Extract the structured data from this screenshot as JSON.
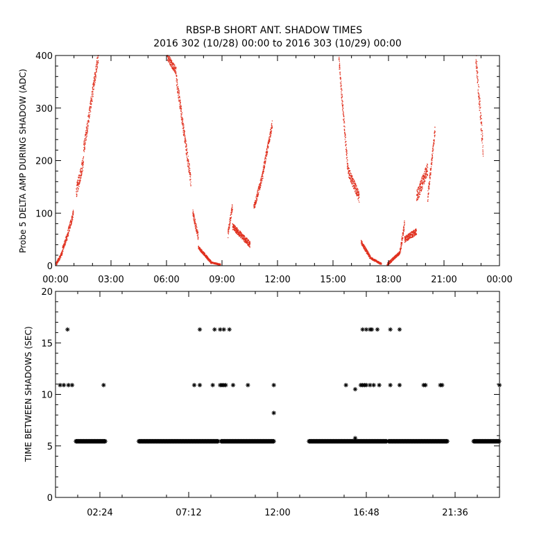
{
  "title_line1": "RBSP-B SHORT ANT. SHADOW TIMES",
  "title_line2": "2016 302 (10/28) 00:00 to 2016 303 (10/29) 00:00",
  "chart_data": [
    {
      "type": "scatter",
      "ylabel": "Probe 5 DELTA AMP DURING SHADOW (ADC)",
      "xlim": [
        0,
        24
      ],
      "ylim": [
        0,
        400
      ],
      "xticks": [
        "00:00",
        "03:00",
        "06:00",
        "09:00",
        "12:00",
        "15:00",
        "18:00",
        "21:00",
        "00:00"
      ],
      "yticks": [
        "0",
        "100",
        "200",
        "300",
        "400"
      ],
      "color": "#e0301e",
      "segments": [
        {
          "t0": 0.0,
          "t1": 0.35,
          "y0": 2,
          "y1": 25,
          "spread": 8
        },
        {
          "t0": 0.35,
          "t1": 0.6,
          "y0": 30,
          "y1": 55,
          "spread": 12
        },
        {
          "t0": 0.6,
          "t1": 0.95,
          "y0": 55,
          "y1": 100,
          "spread": 15
        },
        {
          "t0": 1.1,
          "t1": 1.5,
          "y0": 140,
          "y1": 200,
          "spread": 25
        },
        {
          "t0": 1.5,
          "t1": 2.3,
          "y0": 220,
          "y1": 400,
          "spread": 25
        },
        {
          "t0": 6.0,
          "t1": 6.5,
          "y0": 400,
          "y1": 370,
          "spread": 15
        },
        {
          "t0": 6.5,
          "t1": 7.3,
          "y0": 360,
          "y1": 160,
          "spread": 25
        },
        {
          "t0": 7.4,
          "t1": 7.7,
          "y0": 100,
          "y1": 55,
          "spread": 15
        },
        {
          "t0": 7.7,
          "t1": 8.4,
          "y0": 35,
          "y1": 6,
          "spread": 6
        },
        {
          "t0": 8.4,
          "t1": 8.9,
          "y0": 6,
          "y1": 2,
          "spread": 3
        },
        {
          "t0": 9.3,
          "t1": 9.55,
          "y0": 60,
          "y1": 115,
          "spread": 15
        },
        {
          "t0": 9.55,
          "t1": 10.5,
          "y0": 75,
          "y1": 40,
          "spread": 12
        },
        {
          "t0": 10.7,
          "t1": 11.2,
          "y0": 110,
          "y1": 175,
          "spread": 15
        },
        {
          "t0": 11.2,
          "t1": 11.7,
          "y0": 180,
          "y1": 270,
          "spread": 15
        },
        {
          "t0": 15.3,
          "t1": 15.8,
          "y0": 390,
          "y1": 175,
          "spread": 25
        },
        {
          "t0": 15.8,
          "t1": 16.4,
          "y0": 180,
          "y1": 130,
          "spread": 20
        },
        {
          "t0": 16.5,
          "t1": 17.0,
          "y0": 45,
          "y1": 15,
          "spread": 8
        },
        {
          "t0": 17.0,
          "t1": 17.6,
          "y0": 15,
          "y1": 3,
          "spread": 4
        },
        {
          "t0": 17.9,
          "t1": 18.6,
          "y0": 2,
          "y1": 25,
          "spread": 6
        },
        {
          "t0": 18.6,
          "t1": 18.85,
          "y0": 25,
          "y1": 80,
          "spread": 15
        },
        {
          "t0": 18.85,
          "t1": 19.5,
          "y0": 50,
          "y1": 65,
          "spread": 12
        },
        {
          "t0": 19.5,
          "t1": 20.1,
          "y0": 130,
          "y1": 185,
          "spread": 25
        },
        {
          "t0": 20.1,
          "t1": 20.5,
          "y0": 130,
          "y1": 260,
          "spread": 20
        },
        {
          "t0": 22.7,
          "t1": 23.1,
          "y0": 400,
          "y1": 220,
          "spread": 35
        }
      ]
    },
    {
      "type": "scatter",
      "ylabel": "TIME BETWEEN SHADOWS (SEC)",
      "xlim": [
        0,
        24
      ],
      "ylim": [
        0,
        20
      ],
      "xticks": [
        "02:24",
        "07:12",
        "12:00",
        "16:48",
        "21:36"
      ],
      "yticks": [
        "0",
        "5",
        "10",
        "15",
        "20"
      ],
      "color": "#000000",
      "baseline_value": 5.45,
      "baseline_ranges": [
        [
          1.1,
          2.7
        ],
        [
          4.5,
          8.8
        ],
        [
          8.95,
          11.8
        ],
        [
          13.7,
          17.9
        ],
        [
          18.0,
          21.2
        ],
        [
          22.6,
          24.0
        ]
      ],
      "outliers": [
        [
          0.25,
          10.9
        ],
        [
          0.45,
          10.9
        ],
        [
          0.7,
          10.9
        ],
        [
          0.9,
          10.9
        ],
        [
          0.65,
          16.3
        ],
        [
          2.6,
          10.9
        ],
        [
          7.5,
          10.9
        ],
        [
          7.8,
          10.9
        ],
        [
          7.8,
          16.3
        ],
        [
          8.5,
          10.9
        ],
        [
          8.6,
          16.3
        ],
        [
          8.9,
          16.3
        ],
        [
          9.1,
          16.3
        ],
        [
          9.4,
          16.3
        ],
        [
          8.9,
          10.9
        ],
        [
          9.0,
          10.9
        ],
        [
          9.1,
          10.9
        ],
        [
          9.2,
          10.9
        ],
        [
          9.6,
          10.9
        ],
        [
          10.4,
          10.9
        ],
        [
          11.8,
          10.9
        ],
        [
          11.8,
          8.2
        ],
        [
          15.7,
          10.9
        ],
        [
          16.2,
          10.5
        ],
        [
          16.2,
          5.75
        ],
        [
          16.5,
          10.9
        ],
        [
          16.6,
          10.9
        ],
        [
          16.7,
          10.9
        ],
        [
          16.8,
          10.9
        ],
        [
          17.0,
          10.9
        ],
        [
          17.2,
          10.9
        ],
        [
          17.5,
          10.9
        ],
        [
          16.6,
          16.3
        ],
        [
          16.8,
          16.3
        ],
        [
          17.0,
          16.3
        ],
        [
          17.1,
          16.3
        ],
        [
          17.4,
          16.3
        ],
        [
          18.1,
          10.9
        ],
        [
          18.6,
          10.9
        ],
        [
          18.1,
          16.3
        ],
        [
          18.6,
          16.3
        ],
        [
          19.9,
          10.9
        ],
        [
          20.0,
          10.9
        ],
        [
          20.8,
          10.9
        ],
        [
          20.9,
          10.9
        ],
        [
          24.0,
          10.9
        ]
      ]
    }
  ]
}
